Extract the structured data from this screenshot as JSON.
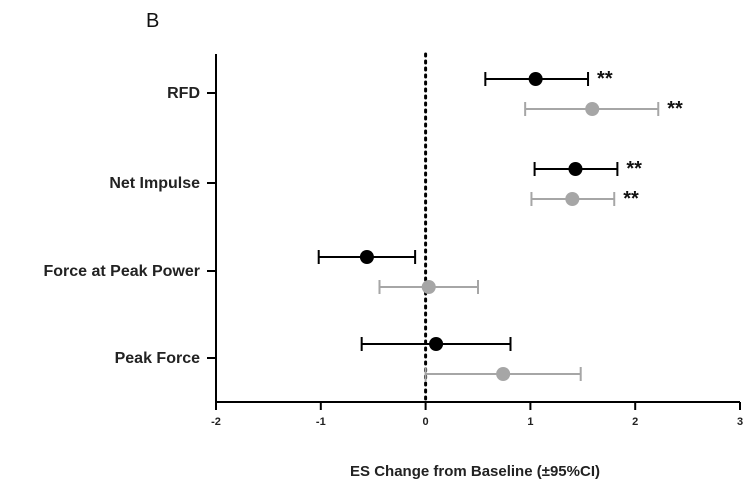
{
  "panel_label": "B",
  "colors": {
    "series_a": "#000000",
    "series_b": "#a6a6a6",
    "axis": "#000000"
  },
  "chart_data": {
    "type": "scatter",
    "title": "",
    "xlabel": "ES Change from Baseline (±95%CI)",
    "ylabel": "",
    "xlim": [
      -2,
      3
    ],
    "x_ticks": [
      "-2",
      "-1",
      "0",
      "1",
      "2",
      "3"
    ],
    "reference_line": {
      "x": 0,
      "style": "dotted"
    },
    "grid": false,
    "legend": "none",
    "categories": [
      "RFD",
      "Net Impulse",
      "Force at Peak Power",
      "Peak Force"
    ],
    "series": [
      {
        "color": "#000000",
        "points": [
          {
            "category": "RFD",
            "value": 1.05,
            "ci_low": 0.57,
            "ci_high": 1.55,
            "annotation": "**"
          },
          {
            "category": "Net Impulse",
            "value": 1.43,
            "ci_low": 1.04,
            "ci_high": 1.83,
            "annotation": "**"
          },
          {
            "category": "Force at Peak Power",
            "value": -0.56,
            "ci_low": -1.02,
            "ci_high": -0.1,
            "annotation": ""
          },
          {
            "category": "Peak Force",
            "value": 0.1,
            "ci_low": -0.61,
            "ci_high": 0.81,
            "annotation": ""
          }
        ]
      },
      {
        "color": "#a6a6a6",
        "points": [
          {
            "category": "RFD",
            "value": 1.59,
            "ci_low": 0.95,
            "ci_high": 2.22,
            "annotation": "**"
          },
          {
            "category": "Net Impulse",
            "value": 1.4,
            "ci_low": 1.01,
            "ci_high": 1.8,
            "annotation": "**"
          },
          {
            "category": "Force at Peak Power",
            "value": 0.03,
            "ci_low": -0.44,
            "ci_high": 0.5,
            "annotation": ""
          },
          {
            "category": "Peak Force",
            "value": 0.74,
            "ci_low": 0.0,
            "ci_high": 1.48,
            "annotation": ""
          }
        ]
      }
    ]
  }
}
